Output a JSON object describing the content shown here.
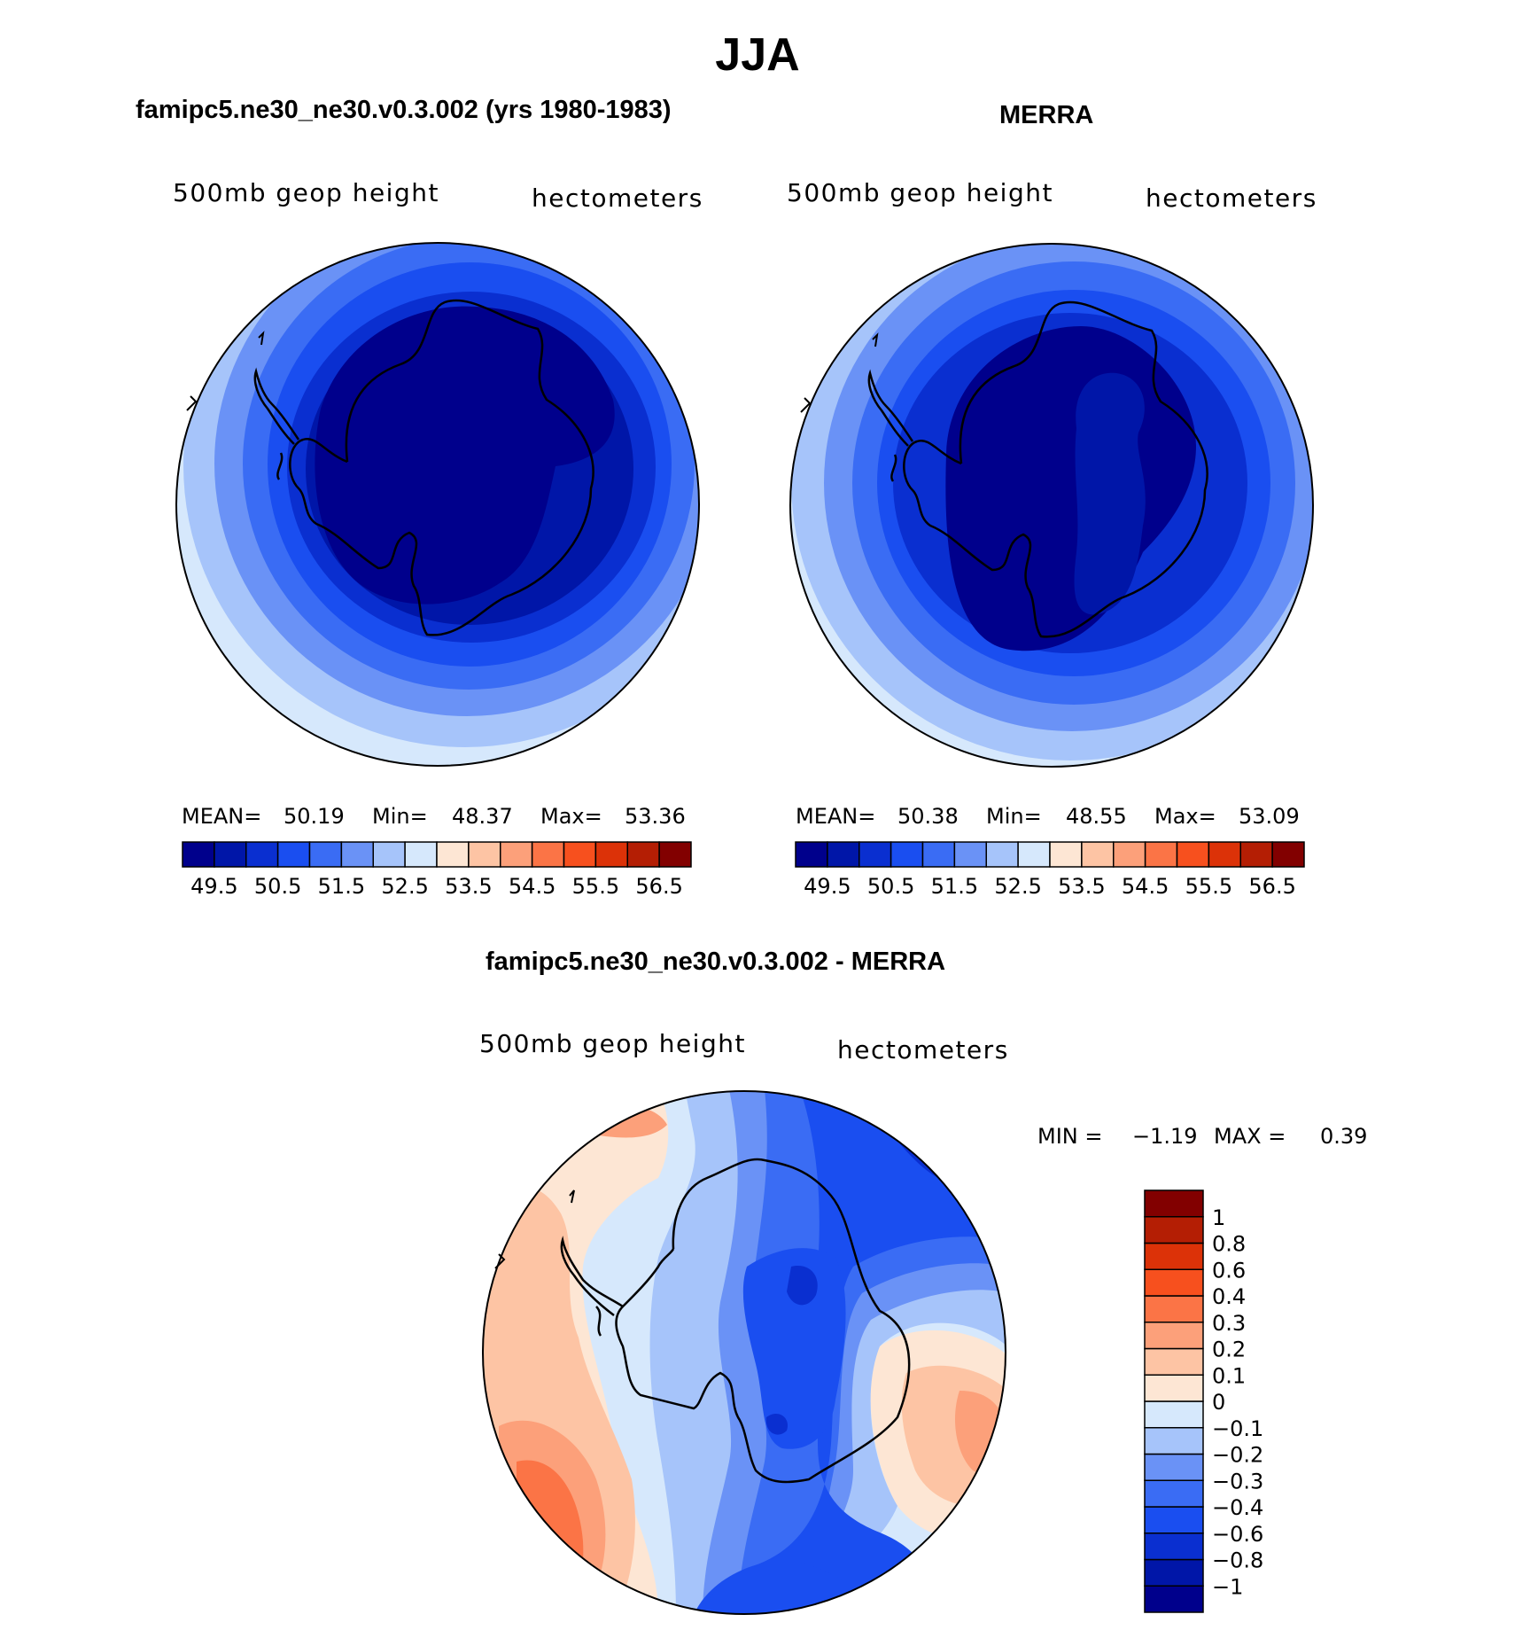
{
  "figure": {
    "season": "JJA",
    "panels": [
      {
        "title": "famipc5.ne30_ne30.v0.3.002 (yrs 1980-1983)",
        "field_label": "500mb  geop  height",
        "units_label": "hectometers",
        "stats": {
          "mean_label": "MEAN=",
          "mean": "50.19",
          "min_label": "Min=",
          "min": "48.37",
          "max_label": "Max=",
          "max": "53.36"
        }
      },
      {
        "title": "MERRA",
        "field_label": "500mb  geop  height",
        "units_label": "hectometers",
        "stats": {
          "mean_label": "MEAN=",
          "mean": "50.38",
          "min_label": "Min=",
          "min": "48.55",
          "max_label": "Max=",
          "max": "53.09"
        }
      }
    ],
    "diff_panel": {
      "title": "famipc5.ne30_ne30.v0.3.002 - MERRA",
      "field_label": "500mb  geop  height",
      "units_label": "hectometers",
      "min_label": "MIN =",
      "min": "−1.19",
      "max_label": "MAX =",
      "max": "0.39"
    }
  },
  "colorbars": {
    "abs": {
      "colors": [
        "#00008c",
        "#0016a8",
        "#0a2fd0",
        "#1a4ef0",
        "#3a6cf4",
        "#6a92f6",
        "#a6c4fa",
        "#d6e8fc",
        "#fde6d4",
        "#fdc4a4",
        "#fca07a",
        "#fb7446",
        "#f7501e",
        "#dc3208",
        "#b41e04",
        "#820000"
      ],
      "tick_labels": [
        "49.5",
        "50.5",
        "51.5",
        "52.5",
        "53.5",
        "54.5",
        "55.5",
        "56.5"
      ]
    },
    "diff": {
      "colors": [
        "#00008c",
        "#0016a8",
        "#0a2fd0",
        "#1a4ef0",
        "#3a6cf4",
        "#6a92f6",
        "#a6c4fa",
        "#d6e8fc",
        "#fde6d4",
        "#fdc4a4",
        "#fca07a",
        "#fb7446",
        "#f7501e",
        "#dc3208",
        "#b41e04",
        "#820000"
      ],
      "tick_labels": [
        "−1",
        "−0.8",
        "−0.6",
        "−0.4",
        "−0.3",
        "−0.2",
        "−0.1",
        "0",
        "0.1",
        "0.2",
        "0.3",
        "0.4",
        "0.6",
        "0.8",
        "1"
      ]
    }
  }
}
